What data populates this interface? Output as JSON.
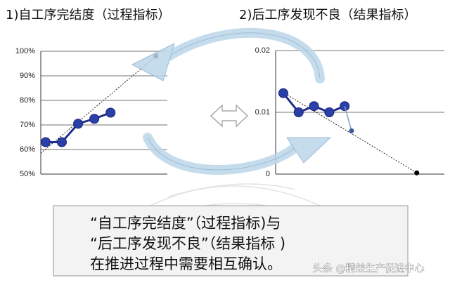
{
  "chart_data": [
    {
      "type": "line",
      "title": "1)自工序完结度（过程指标）",
      "xlim": [
        0.7,
        8.5
      ],
      "ylim": [
        50,
        100
      ],
      "yticks": [
        {
          "value": 50,
          "label": "50%"
        },
        {
          "value": 60,
          "label": "60%"
        },
        {
          "value": 70,
          "label": "70%"
        },
        {
          "value": 80,
          "label": "80%"
        },
        {
          "value": 90,
          "label": "90%"
        },
        {
          "value": 100,
          "label": "100%"
        }
      ],
      "grid": true,
      "series": [
        {
          "color": "#1f2d8a",
          "x": [
            1,
            2,
            3,
            4,
            5
          ],
          "values": [
            63,
            63,
            70.5,
            72.5,
            75
          ]
        }
      ],
      "trend": {
        "x": [
          0.7,
          7.8
        ],
        "values": [
          58.5,
          98
        ]
      },
      "target": {
        "x": 7.8,
        "value": 98
      }
    },
    {
      "type": "line",
      "title": "2)后工序发现不良（结果指标）",
      "xlim": [
        0.5,
        11.5
      ],
      "ylim": [
        0,
        0.02
      ],
      "yticks": [
        0,
        0.01,
        0.02
      ],
      "grid": true,
      "series": [
        {
          "color": "#1f2d8a",
          "x": [
            1,
            2,
            3,
            4,
            5
          ],
          "values": [
            0.0131,
            0.01,
            0.011,
            0.01,
            0.011
          ]
        },
        {
          "color": "#7f9fc4",
          "x": [
            5,
            5.45
          ],
          "values": [
            0.011,
            0.007
          ]
        }
      ],
      "trend": {
        "x": [
          0.8,
          9.7
        ],
        "values": [
          0.0135,
          0.0002
        ]
      },
      "target": {
        "x": 9.7,
        "value": 0.0002
      }
    }
  ],
  "caption": {
    "lines": [
      "“自工序完结度”（过程指标)与",
      "“后工序发现不良”（结果指标 )",
      "在推进过程中需要相互确认。"
    ]
  },
  "watermark": "头条 @精益生产促进中心"
}
